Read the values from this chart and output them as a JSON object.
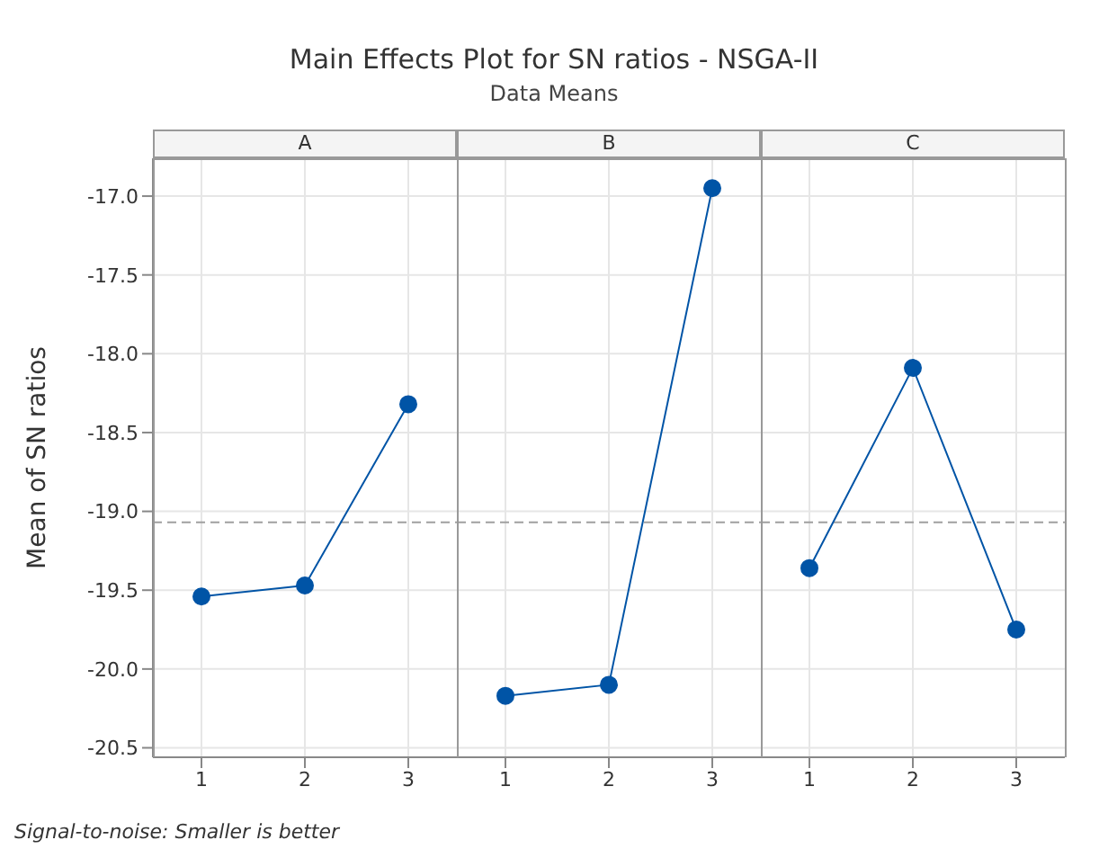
{
  "chart_data": [
    {
      "type": "other",
      "title": "Main Effects Plot for SN ratios   - NSGA-II",
      "subtitle": "Data Means",
      "annotations": [
        "Signal-to-noise: Smaller is better"
      ]
    },
    {
      "type": "line",
      "title": "A",
      "ylabel": "Mean of SN ratios",
      "categories": [
        "1",
        "2",
        "3"
      ],
      "series": [
        {
          "color": "#0054a6",
          "values": [
            -19.54,
            -19.47,
            -18.32
          ]
        }
      ],
      "ylim": [
        -20.56,
        -16.76
      ],
      "yticks": [
        -20.5,
        {
          "value": -20,
          "label": "-20.0"
        },
        -19.5,
        {
          "value": -19,
          "label": "-19.0"
        },
        -18.5,
        {
          "value": -18,
          "label": "-18.0"
        },
        -17.5,
        {
          "value": -17,
          "label": "-17.0"
        }
      ],
      "grid": true,
      "marker": "circle",
      "line_style": "solid",
      "ref_lines": [
        {
          "axis": "y",
          "value": -19.07,
          "color": "#a0a0a0",
          "line_style": "dashed"
        }
      ]
    },
    {
      "type": "line",
      "title": "B",
      "categories": [
        "1",
        "2",
        "3"
      ],
      "series": [
        {
          "color": "#0054a6",
          "values": [
            -20.17,
            -20.1,
            -16.95
          ]
        }
      ],
      "ylim": [
        -20.56,
        -16.76
      ],
      "yticks": [
        -20.5,
        -20.0,
        -19.5,
        -19.0,
        -18.5,
        -18.0,
        -17.5,
        -17.0
      ],
      "tick_labels": "x",
      "grid": true,
      "marker": "circle",
      "line_style": "solid",
      "ref_lines": [
        {
          "axis": "y",
          "value": -19.07,
          "color": "#a0a0a0",
          "line_style": "dashed"
        }
      ]
    },
    {
      "type": "line",
      "title": "C",
      "categories": [
        "1",
        "2",
        "3"
      ],
      "series": [
        {
          "color": "#0054a6",
          "values": [
            -19.36,
            -18.09,
            -19.75
          ]
        }
      ],
      "ylim": [
        -20.56,
        -16.76
      ],
      "yticks": [
        -20.5,
        -20.0,
        -19.5,
        -19.0,
        -18.5,
        -18.0,
        -17.5,
        -17.0
      ],
      "tick_labels": "x",
      "grid": true,
      "marker": "circle",
      "line_style": "solid",
      "ref_lines": [
        {
          "axis": "y",
          "value": -19.07,
          "color": "#a0a0a0",
          "line_style": "dashed"
        }
      ]
    }
  ]
}
